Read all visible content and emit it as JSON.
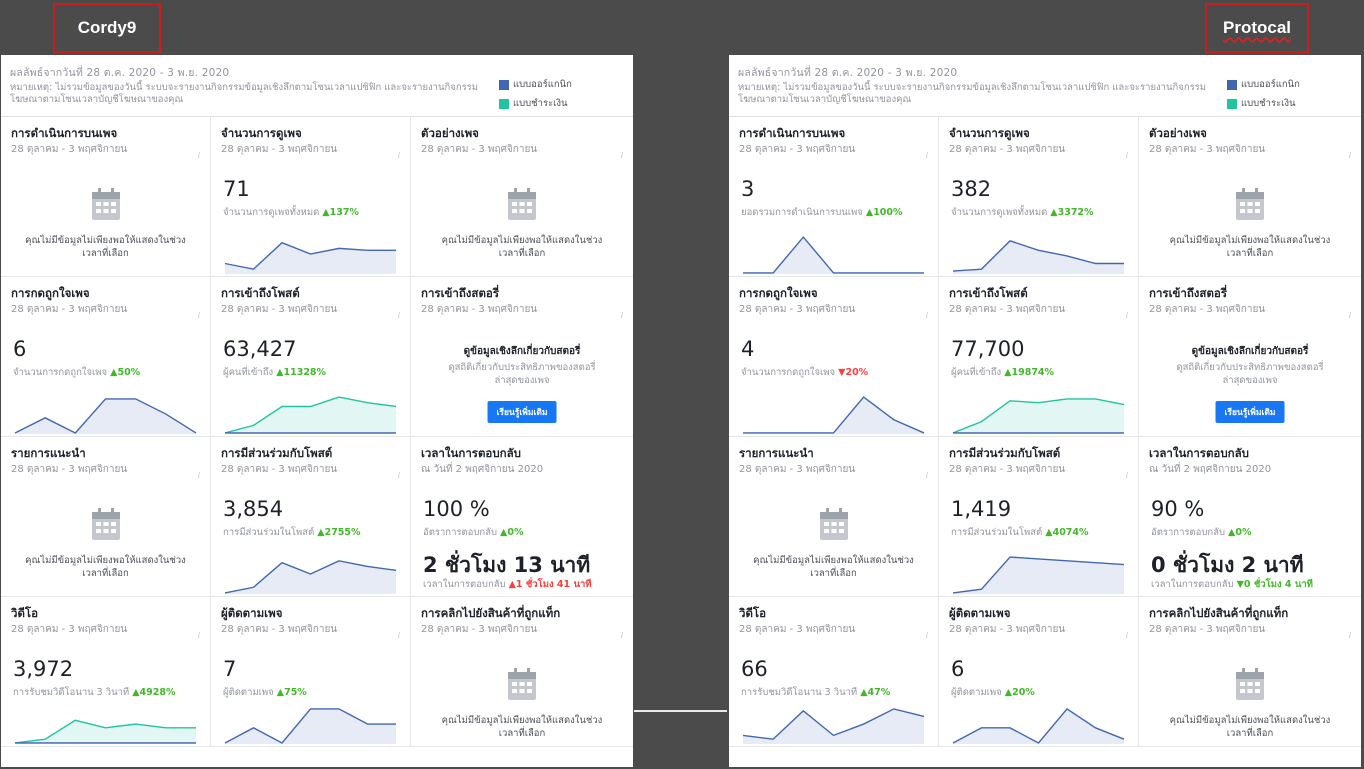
{
  "colors": {
    "organic": "#4267b2",
    "paid": "#20c4a0"
  },
  "left": {
    "brand": "Cordy9",
    "header": {
      "dates": "ผลลัพธ์จากวันที่ 28 ต.ค. 2020 - 3 พ.ย. 2020",
      "note": "หมายเหตุ: ไม่รวมข้อมูลของวันนี้ ระบบจะรายงานกิจกรรมข้อมูลเชิงลึกตามโซนเวลาแปซิฟิก และจะรายงานกิจกรรมโฆษณาตามโซนเวลาบัญชีโฆษณาของคุณ",
      "legend_organic": "แบบออร์แกนิก",
      "legend_paid": "แบบชำระเงิน"
    },
    "cards": {
      "page_actions": {
        "title": "การดำเนินการบนเพจ",
        "sub": "28 ตุลาคม - 3 พฤศจิกายน",
        "nodata": "คุณไม่มีข้อมูลไม่เพียงพอให้แสดงในช่วงเวลาที่เลือก"
      },
      "page_views": {
        "title": "จำนวนการดูเพจ",
        "sub": "28 ตุลาคม - 3 พฤศจิกายน",
        "value": "71",
        "desc": "จำนวนการดูเพจทั้งหมด",
        "change": "▲137%"
      },
      "page_preview": {
        "title": "ตัวอย่างเพจ",
        "sub": "28 ตุลาคม - 3 พฤศจิกายน",
        "nodata": "คุณไม่มีข้อมูลไม่เพียงพอให้แสดงในช่วงเวลาที่เลือก"
      },
      "page_likes": {
        "title": "การกดถูกใจเพจ",
        "sub": "28 ตุลาคม - 3 พฤศจิกายน",
        "value": "6",
        "desc": "จำนวนการกดถูกใจเพจ",
        "change": "▲50%"
      },
      "post_reach": {
        "title": "การเข้าถึงโพสต์",
        "sub": "28 ตุลาคม - 3 พฤศจิกายน",
        "value": "63,427",
        "desc": "ผู้คนที่เข้าถึง",
        "change": "▲11328%"
      },
      "story_reach": {
        "title": "การเข้าถึงสตอรี่",
        "sub": "28 ตุลาคม - 3 พฤศจิกายน",
        "heading": "ดูข้อมูลเชิงลึกเกี่ยวกับสตอรี่",
        "text": "ดูสถิติเกี่ยวกับประสิทธิภาพของสตอรี่ล่าสุดของเพจ",
        "button": "เรียนรู้เพิ่มเติม"
      },
      "recommendations": {
        "title": "รายการแนะนำ",
        "sub": "28 ตุลาคม - 3 พฤศจิกายน",
        "nodata": "คุณไม่มีข้อมูลไม่เพียงพอให้แสดงในช่วงเวลาที่เลือก"
      },
      "post_engagement": {
        "title": "การมีส่วนร่วมกับโพสต์",
        "sub": "28 ตุลาคม - 3 พฤศจิกายน",
        "value": "3,854",
        "desc": "การมีส่วนร่วมในโพสต์",
        "change": "▲2755%"
      },
      "response_time": {
        "title": "เวลาในการตอบกลับ",
        "sub": "ณ วันที่ 2 พฤศจิกายน 2020",
        "rate": "100 %",
        "rate_desc": "อัตราการตอบกลับ",
        "rate_change": "▲0%",
        "time": "2 ชั่วโมง 13 นาที",
        "time_desc": "เวลาในการตอบกลับ",
        "time_change": "▲1 ชั่วโมง 41 นาที"
      },
      "videos": {
        "title": "วิดีโอ",
        "sub": "28 ตุลาคม - 3 พฤศจิกายน",
        "value": "3,972",
        "desc": "การรับชมวิดีโอนาน 3 วินาที",
        "change": "▲4928%"
      },
      "followers": {
        "title": "ผู้ติดตามเพจ",
        "sub": "28 ตุลาคม - 3 พฤศจิกายน",
        "value": "7",
        "desc": "ผู้ติดตามเพจ",
        "change": "▲75%"
      },
      "product_clicks": {
        "title": "การคลิกไปยังสินค้าที่ถูกแท็ก",
        "sub": "28 ตุลาคม - 3 พฤศจิกายน",
        "nodata": "คุณไม่มีข้อมูลไม่เพียงพอให้แสดงในช่วงเวลาที่เลือก"
      }
    }
  },
  "right": {
    "brand": "Protocal",
    "header": {
      "dates": "ผลลัพธ์จากวันที่ 28 ต.ค. 2020 - 3 พ.ย. 2020",
      "note": "หมายเหตุ: ไม่รวมข้อมูลของวันนี้ ระบบจะรายงานกิจกรรมข้อมูลเชิงลึกตามโซนเวลาแปซิฟิก และจะรายงานกิจกรรมโฆษณาตามโซนเวลาบัญชีโฆษณาของคุณ",
      "legend_organic": "แบบออร์แกนิก",
      "legend_paid": "แบบชำระเงิน"
    },
    "cards": {
      "page_actions": {
        "title": "การดำเนินการบนเพจ",
        "sub": "28 ตุลาคม - 3 พฤศจิกายน",
        "value": "3",
        "desc": "ยอดรวมการดำเนินการบนเพจ",
        "change": "▲100%"
      },
      "page_views": {
        "title": "จำนวนการดูเพจ",
        "sub": "28 ตุลาคม - 3 พฤศจิกายน",
        "value": "382",
        "desc": "จำนวนการดูเพจทั้งหมด",
        "change": "▲3372%"
      },
      "page_preview": {
        "title": "ตัวอย่างเพจ",
        "sub": "28 ตุลาคม - 3 พฤศจิกายน",
        "nodata": "คุณไม่มีข้อมูลไม่เพียงพอให้แสดงในช่วงเวลาที่เลือก"
      },
      "page_likes": {
        "title": "การกดถูกใจเพจ",
        "sub": "28 ตุลาคม - 3 พฤศจิกายน",
        "value": "4",
        "desc": "จำนวนการกดถูกใจเพจ",
        "change": "▼20%"
      },
      "post_reach": {
        "title": "การเข้าถึงโพสต์",
        "sub": "28 ตุลาคม - 3 พฤศจิกายน",
        "value": "77,700",
        "desc": "ผู้คนที่เข้าถึง",
        "change": "▲19874%"
      },
      "story_reach": {
        "title": "การเข้าถึงสตอรี่",
        "sub": "28 ตุลาคม - 3 พฤศจิกายน",
        "heading": "ดูข้อมูลเชิงลึกเกี่ยวกับสตอรี่",
        "text": "ดูสถิติเกี่ยวกับประสิทธิภาพของสตอรี่ล่าสุดของเพจ",
        "button": "เรียนรู้เพิ่มเติม"
      },
      "recommendations": {
        "title": "รายการแนะนำ",
        "sub": "28 ตุลาคม - 3 พฤศจิกายน",
        "nodata": "คุณไม่มีข้อมูลไม่เพียงพอให้แสดงในช่วงเวลาที่เลือก"
      },
      "post_engagement": {
        "title": "การมีส่วนร่วมกับโพสต์",
        "sub": "28 ตุลาคม - 3 พฤศจิกายน",
        "value": "1,419",
        "desc": "การมีส่วนร่วมในโพสต์",
        "change": "▲4074%"
      },
      "response_time": {
        "title": "เวลาในการตอบกลับ",
        "sub": "ณ วันที่ 2 พฤศจิกายน 2020",
        "rate": "90 %",
        "rate_desc": "อัตราการตอบกลับ",
        "rate_change": "▲0%",
        "time": "0 ชั่วโมง 2 นาที",
        "time_desc": "เวลาในการตอบกลับ",
        "time_change": "▼0 ชั่วโมง 4 นาที"
      },
      "videos": {
        "title": "วิดีโอ",
        "sub": "28 ตุลาคม - 3 พฤศจิกายน",
        "value": "66",
        "desc": "การรับชมวิดีโอนาน 3 วินาที",
        "change": "▲47%"
      },
      "followers": {
        "title": "ผู้ติดตามเพจ",
        "sub": "28 ตุลาคม - 3 พฤศจิกายน",
        "value": "6",
        "desc": "ผู้ติดตามเพจ",
        "change": "▲20%"
      },
      "product_clicks": {
        "title": "การคลิกไปยังสินค้าที่ถูกแท็ก",
        "sub": "28 ตุลาคม - 3 พฤศจิกายน",
        "nodata": "คุณไม่มีข้อมูลไม่เพียงพอให้แสดงในช่วงเวลาที่เลือก"
      }
    }
  },
  "sparklines": {
    "left": {
      "page_views": {
        "organic": [
          0.25,
          0.1,
          0.8,
          0.5,
          0.65,
          0.6,
          0.6
        ]
      },
      "page_likes": {
        "organic": [
          0,
          0.4,
          0,
          0.9,
          0.9,
          0.5,
          0
        ]
      },
      "post_reach": {
        "organic": [
          0,
          0,
          0,
          0,
          0,
          0,
          0
        ],
        "paid": [
          0,
          0.2,
          0.7,
          0.7,
          0.95,
          0.8,
          0.7
        ]
      },
      "post_engagement": {
        "organic": [
          0,
          0.15,
          0.8,
          0.5,
          0.85,
          0.7,
          0.6
        ]
      },
      "videos": {
        "organic": [
          0,
          0,
          0,
          0,
          0,
          0,
          0
        ],
        "paid": [
          0,
          0.1,
          0.6,
          0.4,
          0.5,
          0.4,
          0.4
        ]
      },
      "followers": {
        "organic": [
          0,
          0.4,
          0,
          0.9,
          0.9,
          0.5,
          0.5
        ]
      }
    },
    "right": {
      "page_actions": {
        "organic": [
          0,
          0,
          0.95,
          0,
          0,
          0,
          0
        ]
      },
      "page_views": {
        "organic": [
          0.05,
          0.1,
          0.85,
          0.6,
          0.45,
          0.25,
          0.25
        ]
      },
      "page_likes": {
        "organic": [
          0,
          0,
          0,
          0,
          0.95,
          0.35,
          0
        ]
      },
      "post_reach": {
        "organic": [
          0,
          0,
          0,
          0,
          0,
          0,
          0
        ],
        "paid": [
          0,
          0.3,
          0.85,
          0.8,
          0.9,
          0.9,
          0.75
        ]
      },
      "post_engagement": {
        "organic": [
          0,
          0.1,
          0.95,
          0.9,
          0.85,
          0.8,
          0.75
        ]
      },
      "videos": {
        "organic": [
          0.2,
          0.1,
          0.85,
          0.2,
          0.5,
          0.9,
          0.7
        ]
      },
      "followers": {
        "organic": [
          0,
          0.4,
          0.4,
          0,
          0.9,
          0.4,
          0.1
        ]
      }
    }
  }
}
